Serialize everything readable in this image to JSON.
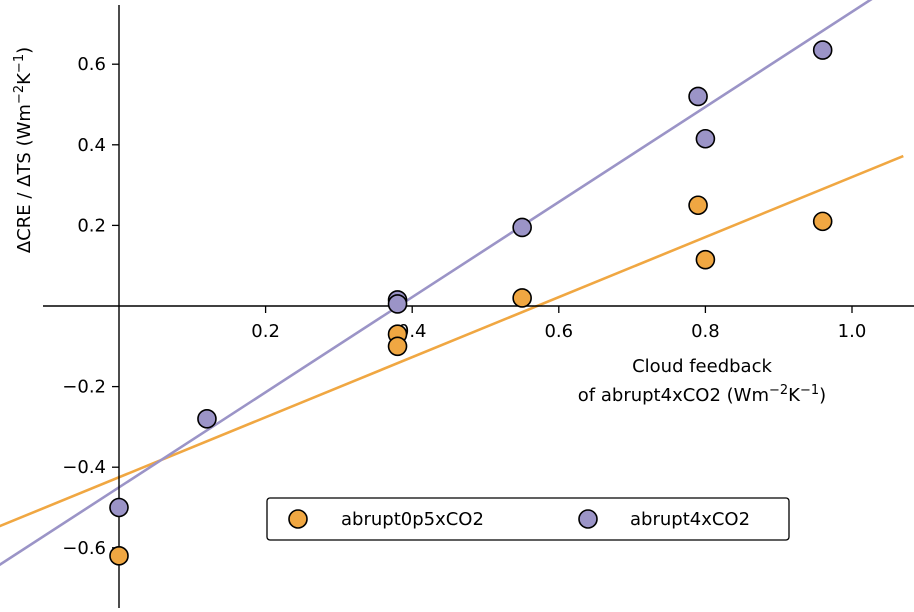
{
  "chart_data": {
    "type": "scatter",
    "xlabel_line1": "Cloud feedback",
    "xlabel_line2_prefix": "of abrupt4xCO2 (Wm",
    "ylabel_prefix": "ΔCRE / ΔTS (Wm",
    "unit_exp1": "−2",
    "unit_mid": "K",
    "unit_exp2": "−1",
    "unit_end": ")",
    "xlim": [
      -0.17,
      1.07
    ],
    "ylim": [
      -0.75,
      0.75
    ],
    "x_ticks": [
      0.2,
      0.4,
      0.6,
      0.8,
      1.0
    ],
    "x_tick_labels": [
      "0.2",
      "0.4",
      "0.6",
      "0.8",
      "1.0"
    ],
    "y_ticks": [
      0.6,
      0.4,
      0.2,
      -0.2,
      -0.4,
      -0.6
    ],
    "y_tick_labels": [
      "0.6",
      "0.4",
      "0.2",
      "−0.2",
      "−0.4",
      "−0.6"
    ],
    "grid": false,
    "legend_position": "lower-right",
    "series": [
      {
        "name": "abrupt0p5xCO2",
        "color": "#f0a742",
        "x": [
          0.0,
          0.38,
          0.38,
          0.55,
          0.79,
          0.8,
          0.96
        ],
        "y": [
          -0.62,
          -0.07,
          -0.1,
          0.02,
          0.25,
          0.115,
          0.21
        ],
        "fit": {
          "slope": 0.745,
          "intercept": -0.425
        }
      },
      {
        "name": "abrupt4xCO2",
        "color": "#9b94c7",
        "x": [
          0.0,
          0.12,
          0.38,
          0.38,
          0.55,
          0.79,
          0.8,
          0.96
        ],
        "y": [
          -0.5,
          -0.28,
          0.015,
          0.005,
          0.195,
          0.52,
          0.415,
          0.635
        ],
        "fit": {
          "slope": 1.18,
          "intercept": -0.45
        }
      }
    ]
  }
}
